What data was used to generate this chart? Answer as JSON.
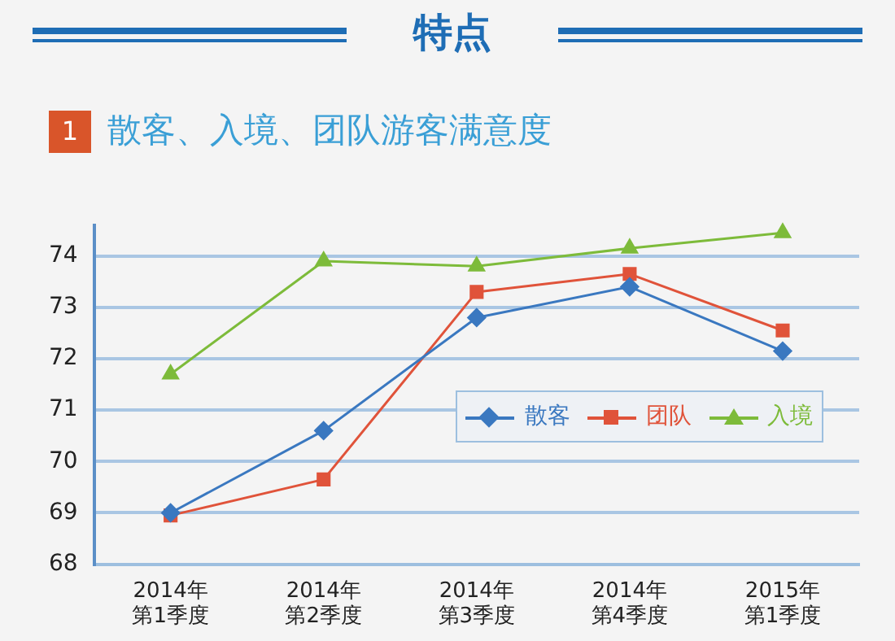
{
  "chart_data": {
    "type": "line",
    "title": "特点",
    "subtitle": "散客、入境、团队游客满意度",
    "annotations": [
      "1"
    ],
    "categories": [
      "2014年第1季度",
      "2014年第2季度",
      "2014年第3季度",
      "2014年第4季度",
      "2015年第1季度"
    ],
    "series": [
      {
        "name": "散客",
        "color": "#3a78c0",
        "marker": "diamond",
        "values": [
          69.0,
          70.6,
          72.8,
          73.4,
          72.15
        ]
      },
      {
        "name": "团队",
        "color": "#e0533a",
        "marker": "square",
        "values": [
          68.95,
          69.65,
          73.3,
          73.65,
          72.55
        ]
      },
      {
        "name": "入境",
        "color": "#7dbb3a",
        "marker": "triangle",
        "values": [
          71.7,
          73.9,
          73.8,
          74.15,
          74.45
        ]
      }
    ],
    "ylim": [
      68,
      74.6
    ],
    "yticks": [
      68,
      69,
      70,
      71,
      72,
      73,
      74
    ],
    "grid": "y",
    "legend": "right"
  }
}
